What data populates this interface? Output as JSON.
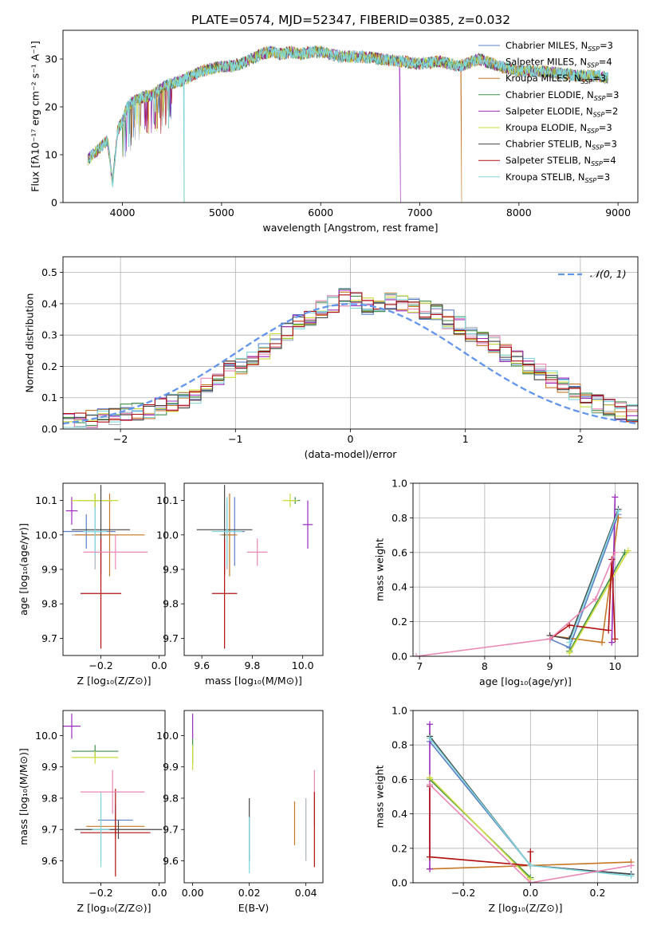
{
  "figure_title": "PLATE=0574, MJD=52347, FIBERID=0385, z=0.032",
  "colors": {
    "chabrier_miles": "#5a7fc7",
    "salpeter_miles": "#aab2bd",
    "kroupa_miles": "#c77724",
    "chabrier_elodie": "#3f8f4a",
    "salpeter_elodie": "#9a2bbd",
    "kroupa_elodie": "#cddc39",
    "chabrier_stelib": "#444444",
    "salpeter_stelib": "#b01010",
    "kroupa_stelib": "#7fd6dc",
    "normal_curve": "#6495ed",
    "pink": "#e987b5",
    "grid": "#b0b0b0"
  },
  "chart_data": [
    {
      "id": "spectrum",
      "type": "line",
      "xlabel": "wavelength [Angstrom, rest frame]",
      "ylabel": "Flux [fλ10⁻¹⁷ erg cm⁻² s⁻¹ A⁻¹]",
      "xlim": [
        3400,
        9200
      ],
      "ylim": [
        0,
        36
      ],
      "xticks": [
        4000,
        5000,
        6000,
        7000,
        8000,
        9000
      ],
      "yticks": [
        0,
        10,
        20,
        30
      ],
      "grid": false,
      "legend_position": "top-right",
      "x_range": [
        3650,
        8900
      ],
      "continuum": [
        [
          3650,
          9
        ],
        [
          3750,
          11
        ],
        [
          3850,
          13
        ],
        [
          3900,
          4
        ],
        [
          3950,
          15
        ],
        [
          4000,
          17
        ],
        [
          4050,
          20
        ],
        [
          4100,
          21
        ],
        [
          4200,
          22
        ],
        [
          4300,
          22.5
        ],
        [
          4400,
          24
        ],
        [
          4500,
          25
        ],
        [
          4600,
          25.5
        ],
        [
          4700,
          26.5
        ],
        [
          4800,
          27.5
        ],
        [
          4900,
          28
        ],
        [
          5000,
          28.5
        ],
        [
          5100,
          28.5
        ],
        [
          5200,
          29
        ],
        [
          5300,
          30
        ],
        [
          5400,
          31
        ],
        [
          5500,
          31.5
        ],
        [
          5600,
          31
        ],
        [
          5700,
          31.5
        ],
        [
          5800,
          31
        ],
        [
          5900,
          31.5
        ],
        [
          6000,
          31.5
        ],
        [
          6200,
          30.5
        ],
        [
          6400,
          30.5
        ],
        [
          6600,
          30
        ],
        [
          6800,
          29.5
        ],
        [
          7000,
          29
        ],
        [
          7200,
          29.5
        ],
        [
          7400,
          28.5
        ],
        [
          7600,
          30
        ],
        [
          7800,
          28.5
        ],
        [
          8000,
          27.5
        ],
        [
          8200,
          27.5
        ],
        [
          8400,
          27
        ],
        [
          8600,
          26.5
        ],
        [
          8800,
          26.5
        ],
        [
          8900,
          26
        ]
      ],
      "dips": [
        [
          3935,
          5
        ],
        [
          4620,
          0
        ],
        [
          5170,
          19
        ],
        [
          6800,
          0
        ],
        [
          7420,
          0
        ],
        [
          3968,
          6
        ]
      ],
      "legend": [
        {
          "text": "Chabrier MILES, N",
          "sub": "SSP",
          "tail": "=3",
          "color": "chabrier_miles"
        },
        {
          "text": "Salpeter MILES, N",
          "sub": "SSP",
          "tail": "=4",
          "color": "salpeter_miles"
        },
        {
          "text": "Kroupa MILES, N",
          "sub": "SSP",
          "tail": "=3",
          "color": "kroupa_miles"
        },
        {
          "text": "Chabrier ELODIE, N",
          "sub": "SSP",
          "tail": "=3",
          "color": "chabrier_elodie"
        },
        {
          "text": "Salpeter ELODIE, N",
          "sub": "SSP",
          "tail": "=2",
          "color": "salpeter_elodie"
        },
        {
          "text": "Kroupa ELODIE, N",
          "sub": "SSP",
          "tail": "=3",
          "color": "kroupa_elodie"
        },
        {
          "text": "Chabrier STELIB, N",
          "sub": "SSP",
          "tail": "=3",
          "color": "chabrier_stelib"
        },
        {
          "text": "Salpeter STELIB, N",
          "sub": "SSP",
          "tail": "=4",
          "color": "salpeter_stelib"
        },
        {
          "text": "Kroupa STELIB, N",
          "sub": "SSP",
          "tail": "=3",
          "color": "kroupa_stelib"
        }
      ]
    },
    {
      "id": "residuals",
      "type": "step",
      "xlabel": "(data-model)/error",
      "ylabel": "Normed distribution",
      "xlim": [
        -2.5,
        2.5
      ],
      "ylim": [
        0,
        0.55
      ],
      "xticks": [
        -2,
        -1,
        0,
        1,
        2
      ],
      "yticks": [
        0.0,
        0.1,
        0.2,
        0.3,
        0.4,
        0.5
      ],
      "grid": true,
      "legend_position": "top-right",
      "legend": "𝒩(0, 1)",
      "normal": {
        "mean": 0,
        "sigma": 1
      },
      "bin_width": 0.1,
      "base_hist": [
        0.02,
        0.025,
        0.03,
        0.035,
        0.04,
        0.05,
        0.055,
        0.06,
        0.07,
        0.085,
        0.095,
        0.11,
        0.14,
        0.16,
        0.19,
        0.2,
        0.22,
        0.25,
        0.28,
        0.31,
        0.34,
        0.36,
        0.38,
        0.4,
        0.42,
        0.41,
        0.39,
        0.38,
        0.41,
        0.4,
        0.39,
        0.38,
        0.37,
        0.35,
        0.33,
        0.31,
        0.29,
        0.27,
        0.24,
        0.22,
        0.2,
        0.18,
        0.16,
        0.14,
        0.12,
        0.1,
        0.08,
        0.07,
        0.06,
        0.05
      ]
    },
    {
      "id": "age_vs_Z",
      "type": "errorbar",
      "xlabel": "Z [log₁₀(Z/Z⊙)]",
      "ylabel": "age  [log₁₀(age/yr)]",
      "xlim": [
        -0.33,
        0.02
      ],
      "ylim": [
        9.65,
        10.15
      ],
      "xticks": [
        -0.2,
        0.0
      ],
      "yticks": [
        9.7,
        9.8,
        9.9,
        10.0,
        10.1
      ],
      "grid": false,
      "points": [
        {
          "x": -0.25,
          "y": 10.01,
          "xe": 0.1,
          "ye": 0.05,
          "c": "chabrier_miles"
        },
        {
          "x": -0.22,
          "y": 10.0,
          "xe": 0.08,
          "ye": 0.1,
          "c": "salpeter_miles"
        },
        {
          "x": -0.17,
          "y": 10.0,
          "xe": 0.12,
          "ye": 0.12,
          "c": "kroupa_miles"
        },
        {
          "x": -0.22,
          "y": 10.1,
          "xe": 0.06,
          "ye": 0.02,
          "c": "chabrier_elodie"
        },
        {
          "x": -0.3,
          "y": 10.07,
          "xe": 0.02,
          "ye": 0.04,
          "c": "salpeter_elodie"
        },
        {
          "x": -0.22,
          "y": 10.1,
          "xe": 0.08,
          "ye": 0.02,
          "c": "kroupa_elodie"
        },
        {
          "x": -0.2,
          "y": 10.015,
          "xe": 0.1,
          "ye": 0.13,
          "c": "chabrier_stelib"
        },
        {
          "x": -0.2,
          "y": 9.83,
          "xe": 0.07,
          "ye": 0.16,
          "c": "salpeter_stelib"
        },
        {
          "x": -0.22,
          "y": 10.01,
          "xe": 0.04,
          "ye": 0.07,
          "c": "kroupa_stelib"
        },
        {
          "x": -0.15,
          "y": 9.95,
          "xe": 0.11,
          "ye": 0.05,
          "c": "pink"
        }
      ]
    },
    {
      "id": "age_vs_mass",
      "type": "errorbar",
      "xlabel": "mass [log₁₀(M/M⊙)]",
      "ylabel": "",
      "xlim": [
        9.53,
        10.08
      ],
      "ylim": [
        9.65,
        10.15
      ],
      "xticks": [
        9.6,
        9.8,
        10.0
      ],
      "yticks": [
        9.7,
        9.8,
        9.9,
        10.0,
        10.1
      ],
      "grid": false,
      "points": [
        {
          "x": 9.73,
          "y": 10.01,
          "xe": 0.04,
          "ye": 0.1,
          "c": "chabrier_miles"
        },
        {
          "x": 9.7,
          "y": 10.0,
          "xe": 0.03,
          "ye": 0.1,
          "c": "salpeter_miles"
        },
        {
          "x": 9.71,
          "y": 10.0,
          "xe": 0.03,
          "ye": 0.12,
          "c": "kroupa_miles"
        },
        {
          "x": 9.97,
          "y": 10.1,
          "xe": 0.02,
          "ye": 0.01,
          "c": "chabrier_elodie"
        },
        {
          "x": 10.02,
          "y": 10.03,
          "xe": 0.02,
          "ye": 0.07,
          "c": "salpeter_elodie"
        },
        {
          "x": 9.95,
          "y": 10.1,
          "xe": 0.03,
          "ye": 0.02,
          "c": "kroupa_elodie"
        },
        {
          "x": 9.69,
          "y": 10.015,
          "xe": 0.11,
          "ye": 0.13,
          "c": "chabrier_stelib"
        },
        {
          "x": 9.69,
          "y": 9.83,
          "xe": 0.05,
          "ye": 0.16,
          "c": "salpeter_stelib"
        },
        {
          "x": 9.7,
          "y": 10.01,
          "xe": 0.06,
          "ye": 0.1,
          "c": "kroupa_stelib"
        },
        {
          "x": 9.82,
          "y": 9.95,
          "xe": 0.04,
          "ye": 0.04,
          "c": "pink"
        }
      ]
    },
    {
      "id": "weight_vs_age",
      "type": "line",
      "xlabel": "age  [log₁₀(age/yr)]",
      "ylabel": "mass weight",
      "xlim": [
        6.9,
        10.35
      ],
      "ylim": [
        0,
        1.0
      ],
      "xticks": [
        7,
        8,
        9,
        10
      ],
      "yticks": [
        0.0,
        0.2,
        0.4,
        0.6,
        0.8,
        1.0
      ],
      "grid": true,
      "series": [
        {
          "c": "chabrier_miles",
          "pts": [
            [
              9.0,
              0.1
            ],
            [
              9.3,
              0.05
            ],
            [
              10.05,
              0.82
            ]
          ]
        },
        {
          "c": "kroupa_miles",
          "pts": [
            [
              9.0,
              0.12
            ],
            [
              9.8,
              0.08
            ],
            [
              10.05,
              0.8
            ]
          ]
        },
        {
          "c": "chabrier_elodie",
          "pts": [
            [
              9.3,
              0.03
            ],
            [
              10.15,
              0.6
            ]
          ]
        },
        {
          "c": "salpeter_elodie",
          "pts": [
            [
              9.95,
              0.08
            ],
            [
              10.0,
              0.92
            ]
          ]
        },
        {
          "c": "kroupa_elodie",
          "pts": [
            [
              9.3,
              0.02
            ],
            [
              10.2,
              0.61
            ]
          ]
        },
        {
          "c": "chabrier_stelib",
          "pts": [
            [
              9.0,
              0.12
            ],
            [
              9.3,
              0.1
            ],
            [
              10.05,
              0.85
            ]
          ]
        },
        {
          "c": "salpeter_stelib",
          "pts": [
            [
              9.0,
              0.1
            ],
            [
              9.3,
              0.18
            ],
            [
              9.9,
              0.15
            ],
            [
              9.95,
              0.56
            ],
            [
              10.0,
              0.1
            ]
          ]
        },
        {
          "c": "kroupa_stelib",
          "pts": [
            [
              9.3,
              0.08
            ],
            [
              10.05,
              0.84
            ]
          ]
        },
        {
          "c": "pink",
          "pts": [
            [
              6.95,
              0.0
            ],
            [
              9.0,
              0.1
            ],
            [
              9.7,
              0.33
            ],
            [
              10.0,
              0.6
            ]
          ]
        }
      ]
    },
    {
      "id": "mass_vs_Z",
      "type": "errorbar",
      "xlabel": "Z [log₁₀(Z/Z⊙)]",
      "ylabel": "mass [log₁₀(M/M⊙)]",
      "xlim": [
        -0.33,
        0.02
      ],
      "ylim": [
        9.53,
        10.08
      ],
      "xticks": [
        -0.2,
        0.0
      ],
      "yticks": [
        9.6,
        9.7,
        9.8,
        9.9,
        10.0
      ],
      "grid": false,
      "points": [
        {
          "x": -0.15,
          "y": 9.73,
          "xe": 0.06,
          "ye": 0.05,
          "c": "chabrier_miles"
        },
        {
          "x": -0.2,
          "y": 9.7,
          "xe": 0.05,
          "ye": 0.1,
          "c": "salpeter_miles"
        },
        {
          "x": -0.15,
          "y": 9.71,
          "xe": 0.1,
          "ye": 0.04,
          "c": "kroupa_miles"
        },
        {
          "x": -0.22,
          "y": 9.95,
          "xe": 0.08,
          "ye": 0.02,
          "c": "chabrier_elodie"
        },
        {
          "x": -0.3,
          "y": 10.03,
          "xe": 0.03,
          "ye": 0.04,
          "c": "salpeter_elodie"
        },
        {
          "x": -0.22,
          "y": 9.93,
          "xe": 0.08,
          "ye": 0.02,
          "c": "kroupa_elodie"
        },
        {
          "x": -0.14,
          "y": 9.7,
          "xe": 0.15,
          "ye": 0.03,
          "c": "chabrier_stelib"
        },
        {
          "x": -0.15,
          "y": 9.69,
          "xe": 0.12,
          "ye": 0.14,
          "c": "salpeter_stelib"
        },
        {
          "x": -0.2,
          "y": 9.7,
          "xe": 0.03,
          "ye": 0.12,
          "c": "kroupa_stelib"
        },
        {
          "x": -0.16,
          "y": 9.82,
          "xe": 0.11,
          "ye": 0.07,
          "c": "pink"
        }
      ]
    },
    {
      "id": "mass_vs_EBV",
      "type": "errorbar",
      "xlabel": "E(B-V)",
      "ylabel": "",
      "xlim": [
        -0.003,
        0.046
      ],
      "ylim": [
        9.53,
        10.08
      ],
      "xticks": [
        0.0,
        0.02,
        0.04
      ],
      "yticks": [
        9.6,
        9.7,
        9.8,
        9.9,
        10.0
      ],
      "grid": false,
      "points": [
        {
          "x": 0.0,
          "y": 9.95,
          "xe": 0.0,
          "ye": 0.04,
          "c": "chabrier_elodie"
        },
        {
          "x": 0.0,
          "y": 10.03,
          "xe": 0.0,
          "ye": 0.04,
          "c": "salpeter_elodie"
        },
        {
          "x": 0.0,
          "y": 9.93,
          "xe": 0.0,
          "ye": 0.04,
          "c": "kroupa_elodie"
        },
        {
          "x": 0.02,
          "y": 9.7,
          "xe": 0.0,
          "ye": 0.1,
          "c": "chabrier_stelib"
        },
        {
          "x": 0.02,
          "y": 9.65,
          "xe": 0.0,
          "ye": 0.09,
          "c": "kroupa_stelib"
        },
        {
          "x": 0.036,
          "y": 9.72,
          "xe": 0.0,
          "ye": 0.07,
          "c": "kroupa_miles"
        },
        {
          "x": 0.04,
          "y": 9.7,
          "xe": 0.0,
          "ye": 0.1,
          "c": "salpeter_miles"
        },
        {
          "x": 0.043,
          "y": 9.8,
          "xe": 0.0,
          "ye": 0.09,
          "c": "pink"
        },
        {
          "x": 0.043,
          "y": 9.7,
          "xe": 0.0,
          "ye": 0.12,
          "c": "salpeter_stelib"
        }
      ]
    },
    {
      "id": "weight_vs_Z",
      "type": "line",
      "xlabel": "Z [log₁₀(Z/Z⊙)]",
      "ylabel": "mass weight",
      "xlim": [
        -0.35,
        0.32
      ],
      "ylim": [
        0,
        1.0
      ],
      "xticks": [
        -0.2,
        0.0,
        0.2
      ],
      "yticks": [
        0.0,
        0.2,
        0.4,
        0.6,
        0.8,
        1.0
      ],
      "grid": true,
      "series": [
        {
          "c": "chabrier_miles",
          "pts": [
            [
              -0.3,
              0.82
            ],
            [
              0.0,
              0.1
            ],
            [
              0.3,
              0.05
            ]
          ]
        },
        {
          "c": "kroupa_miles",
          "pts": [
            [
              -0.3,
              0.08
            ],
            [
              0.3,
              0.12
            ]
          ]
        },
        {
          "c": "chabrier_elodie",
          "pts": [
            [
              -0.3,
              0.6
            ],
            [
              0.0,
              0.03
            ]
          ]
        },
        {
          "c": "salpeter_elodie",
          "pts": [
            [
              -0.3,
              0.08
            ],
            [
              -0.3,
              0.92
            ]
          ]
        },
        {
          "c": "kroupa_elodie",
          "pts": [
            [
              -0.3,
              0.61
            ],
            [
              0.0,
              0.02
            ]
          ]
        },
        {
          "c": "chabrier_stelib",
          "pts": [
            [
              -0.3,
              0.85
            ],
            [
              0.0,
              0.1
            ],
            [
              0.3,
              0.05
            ]
          ]
        },
        {
          "c": "salpeter_stelib",
          "pts": [
            [
              -0.3,
              0.56
            ],
            [
              -0.3,
              0.15
            ],
            [
              0.0,
              0.1
            ],
            [
              0.0,
              0.18
            ]
          ]
        },
        {
          "c": "kroupa_stelib",
          "pts": [
            [
              -0.3,
              0.84
            ],
            [
              0.0,
              0.1
            ],
            [
              0.3,
              0.04
            ]
          ]
        },
        {
          "c": "pink",
          "pts": [
            [
              -0.3,
              0.57
            ],
            [
              0.0,
              0.0
            ],
            [
              0.3,
              0.1
            ]
          ]
        }
      ]
    }
  ]
}
